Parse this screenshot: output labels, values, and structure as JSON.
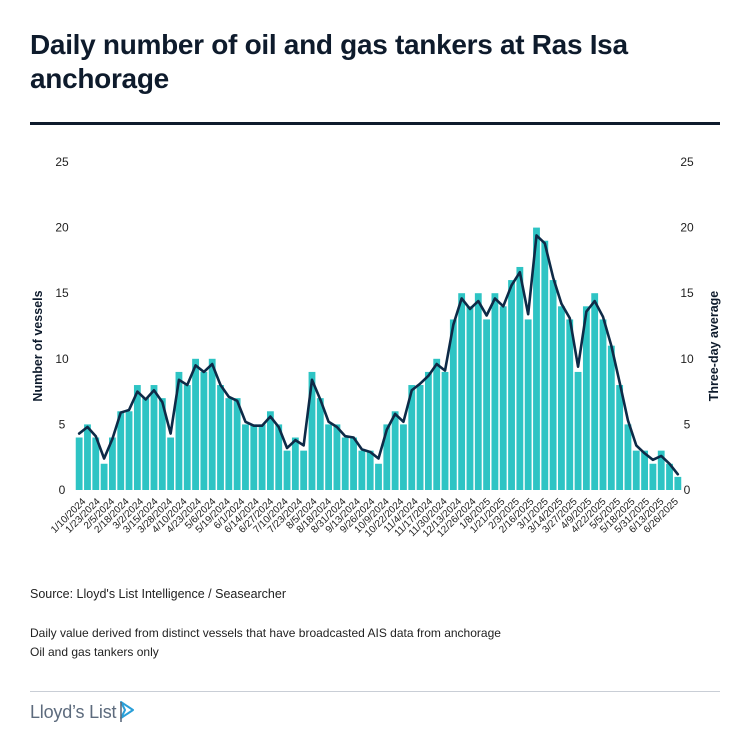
{
  "header": {
    "title": "Daily number of oil and gas tankers at Ras Isa anchorage"
  },
  "footer": {
    "source": "Source: Lloyd's List Intelligence / Seasearcher",
    "note1": "Daily value derived from distinct vessels that have broadcasted AIS data from anchorage",
    "note2": "Oil and gas tankers only",
    "logo_text": "Lloyd’s List"
  },
  "colors": {
    "bars": "#2ec4c4",
    "line": "#0e2a47",
    "text": "#0e1b2c",
    "logo_accent": "#2a9fd8"
  },
  "chart_data": {
    "type": "bar",
    "ylabel": "Number of vessels",
    "y2label": "Three-day average",
    "ylim": [
      0,
      25
    ],
    "yticks": [
      0,
      5,
      10,
      15,
      20,
      25
    ],
    "grid": false,
    "legend": "none",
    "x_tick_labels": [
      "1/10/2024",
      "1/23/2024",
      "2/5/2024",
      "2/18/2024",
      "3/2/2024",
      "3/15/2024",
      "3/28/2024",
      "4/10/2024",
      "4/23/2024",
      "5/6/2024",
      "5/19/2024",
      "6/1/2024",
      "6/14/2024",
      "6/27/2024",
      "7/10/2024",
      "7/23/2024",
      "8/5/2024",
      "8/18/2024",
      "8/31/2024",
      "9/13/2024",
      "9/26/2024",
      "10/9/2024",
      "10/22/2024",
      "11/4/2024",
      "11/17/2024",
      "11/30/2024",
      "12/13/2024",
      "12/26/2024",
      "1/8/2025",
      "1/21/2025",
      "2/3/2025",
      "2/16/2025",
      "3/1/2025",
      "3/14/2025",
      "3/27/2025",
      "4/9/2025",
      "4/22/2025",
      "5/5/2025",
      "5/18/2025",
      "5/31/2025",
      "6/13/2025",
      "6/26/2025"
    ],
    "series": [
      {
        "name": "Number of vessels",
        "kind": "bar",
        "period_start": "1/10/2024",
        "step_days": 13,
        "values": [
          4,
          5,
          4,
          2,
          4,
          6,
          6,
          8,
          7,
          8,
          7,
          4,
          9,
          8,
          10,
          9,
          10,
          8,
          7,
          7,
          5,
          5,
          5,
          6,
          5,
          3,
          4,
          3,
          9,
          7,
          5,
          5,
          4,
          4,
          3,
          3,
          2,
          5,
          6,
          5,
          8,
          8,
          9,
          10,
          9,
          13,
          15,
          14,
          15,
          13,
          15,
          14,
          16,
          17,
          13,
          20,
          19,
          16,
          14,
          13,
          9,
          14,
          15,
          13,
          11,
          8,
          5,
          3,
          3,
          2,
          3,
          2,
          1
        ]
      },
      {
        "name": "Three-day average",
        "kind": "line",
        "values": [
          4.3,
          4.8,
          4.1,
          2.4,
          3.9,
          5.9,
          6.1,
          7.5,
          6.9,
          7.6,
          6.7,
          4.3,
          8.4,
          8.0,
          9.5,
          9.0,
          9.6,
          8.0,
          7.1,
          6.8,
          5.2,
          4.9,
          4.9,
          5.6,
          4.8,
          3.2,
          3.8,
          3.4,
          8.4,
          6.9,
          5.2,
          4.8,
          4.1,
          4.0,
          3.1,
          2.9,
          2.4,
          4.6,
          5.8,
          5.2,
          7.6,
          8.1,
          8.7,
          9.6,
          9.1,
          12.6,
          14.6,
          13.8,
          14.4,
          13.3,
          14.6,
          14.0,
          15.6,
          16.6,
          13.4,
          19.4,
          18.8,
          16.2,
          14.2,
          13.1,
          9.4,
          13.6,
          14.4,
          13.2,
          11.0,
          8.2,
          5.3,
          3.4,
          2.8,
          2.3,
          2.6,
          2.0,
          1.2
        ]
      }
    ]
  }
}
